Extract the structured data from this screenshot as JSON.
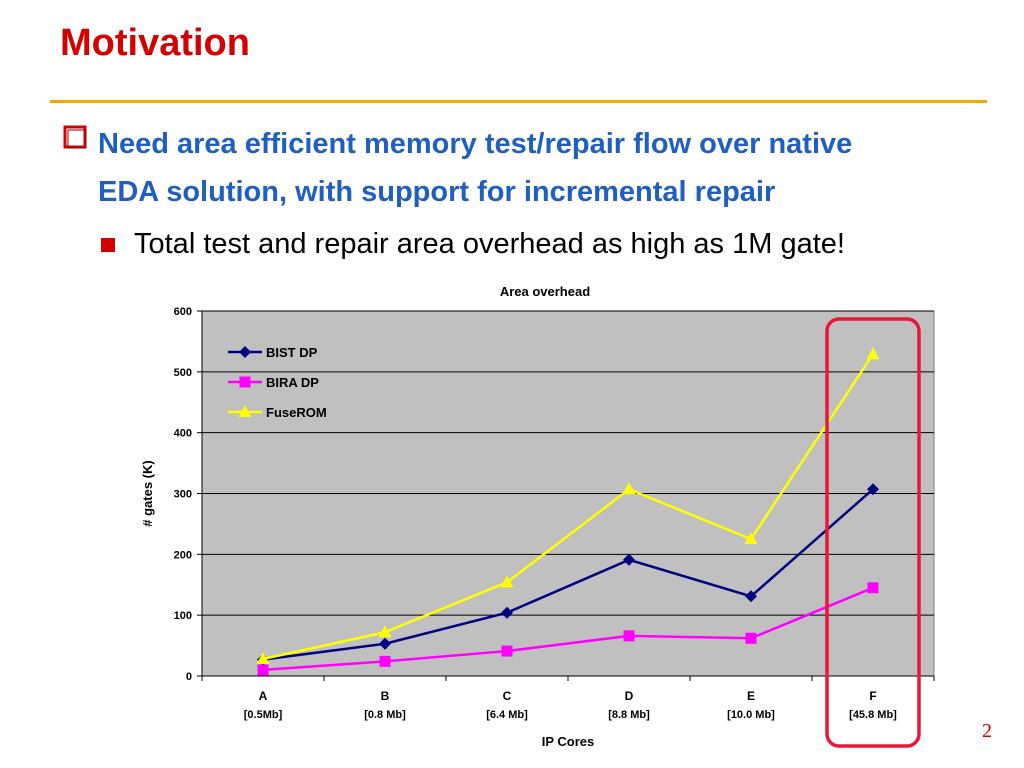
{
  "slide": {
    "title": "Motivation",
    "bullet_main_line1": "Need area efficient memory test/repair flow over native",
    "bullet_main_line2": "EDA solution, with support for incremental repair",
    "bullet_sub": "Total test and repair area overhead as high as 1M gate!",
    "page_number": "2",
    "colors": {
      "title": "#d40000",
      "rule": "#f5a800",
      "main_bullet_text": "#1f5fbf",
      "highlight_box": "#e8183a"
    }
  },
  "chart_data": {
    "type": "line",
    "title": "Area overhead",
    "xlabel": "IP Cores",
    "ylabel": "# gates (K)",
    "ylim": [
      0,
      600
    ],
    "yticks": [
      0,
      100,
      200,
      300,
      400,
      500,
      600
    ],
    "categories": [
      "A",
      "B",
      "C",
      "D",
      "E",
      "F"
    ],
    "category_sizes": [
      "[0.5Mb]",
      "[0.8 Mb]",
      "[6.4 Mb]",
      "[8.8 Mb]",
      "[10.0 Mb]",
      "[45.8 Mb]"
    ],
    "grid": "horizontal",
    "legend_position": "top-left",
    "highlighted_category": "F",
    "series": [
      {
        "name": "BIST DP",
        "marker": "diamond",
        "color": "#000080",
        "values": [
          27,
          53,
          104,
          191,
          131,
          307
        ]
      },
      {
        "name": "BIRA DP",
        "marker": "square",
        "color": "#ff00ff",
        "values": [
          10,
          24,
          41,
          66,
          62,
          145
        ]
      },
      {
        "name": "FuseROM",
        "marker": "triangle",
        "color": "#ffff00",
        "values": [
          28,
          72,
          154,
          307,
          225,
          529
        ]
      }
    ]
  }
}
